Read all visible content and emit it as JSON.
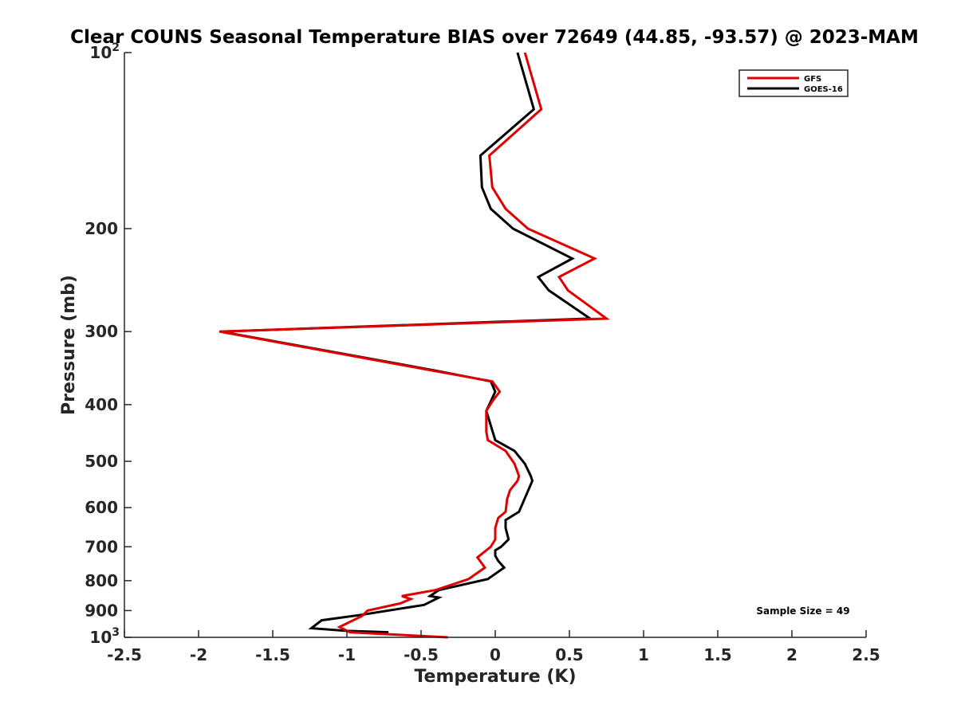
{
  "chart_data": {
    "type": "line",
    "title": "Clear COUNS Seasonal Temperature BIAS over 72649 (44.85, -93.57) @ 2023-MAM",
    "xlabel": "Temperature (K)",
    "ylabel": "Pressure (mb)",
    "xlim": [
      -2.5,
      2.5
    ],
    "ylim": [
      100,
      1000
    ],
    "yscale": "log",
    "x_ticks": [
      -2.5,
      -2,
      -1.5,
      -1,
      -0.5,
      0,
      0.5,
      1,
      1.5,
      2,
      2.5
    ],
    "x_tick_labels": [
      "-2.5",
      "-2",
      "-1.5",
      "-1",
      "-0.5",
      "0",
      "0.5",
      "1",
      "1.5",
      "2",
      "2.5"
    ],
    "y_ticks": [
      100,
      200,
      300,
      400,
      500,
      600,
      700,
      800,
      900,
      1000
    ],
    "y_tick_labels": [
      {
        "base": "10",
        "exp": "2"
      },
      {
        "text": "200"
      },
      {
        "text": "300"
      },
      {
        "text": "400"
      },
      {
        "text": "500"
      },
      {
        "text": "600"
      },
      {
        "text": "700"
      },
      {
        "text": "800"
      },
      {
        "text": "900"
      },
      {
        "base": "10",
        "exp": "3"
      }
    ],
    "legend_position": "top-right",
    "annotation": "Sample Size = 49",
    "series": [
      {
        "name": "GFS",
        "color": "#e00000",
        "points": [
          [
            0.2,
            100
          ],
          [
            0.31,
            125
          ],
          [
            -0.04,
            150
          ],
          [
            -0.02,
            170
          ],
          [
            0.07,
            185
          ],
          [
            0.22,
            200
          ],
          [
            0.67,
            225
          ],
          [
            0.43,
            242
          ],
          [
            0.49,
            255
          ],
          [
            0.75,
            285
          ],
          [
            -1.86,
            300
          ],
          [
            -0.42,
            350
          ],
          [
            -0.02,
            365
          ],
          [
            0.03,
            380
          ],
          [
            -0.02,
            395
          ],
          [
            -0.06,
            410
          ],
          [
            -0.06,
            445
          ],
          [
            -0.05,
            460
          ],
          [
            0.07,
            480
          ],
          [
            0.13,
            505
          ],
          [
            0.16,
            530
          ],
          [
            0.15,
            540
          ],
          [
            0.1,
            560
          ],
          [
            0.08,
            580
          ],
          [
            0.07,
            610
          ],
          [
            0.02,
            625
          ],
          [
            0.0,
            650
          ],
          [
            0.0,
            680
          ],
          [
            -0.03,
            700
          ],
          [
            -0.12,
            730
          ],
          [
            -0.07,
            760
          ],
          [
            -0.18,
            795
          ],
          [
            -0.4,
            830
          ],
          [
            -0.63,
            850
          ],
          [
            -0.57,
            860
          ],
          [
            -0.64,
            875
          ],
          [
            -0.86,
            900
          ],
          [
            -0.9,
            920
          ],
          [
            -1.05,
            960
          ],
          [
            -0.98,
            980
          ],
          [
            -0.32,
            1000
          ]
        ]
      },
      {
        "name": "GOES-16",
        "color": "#000000",
        "points": [
          [
            0.15,
            100
          ],
          [
            0.26,
            125
          ],
          [
            -0.1,
            150
          ],
          [
            -0.09,
            170
          ],
          [
            -0.03,
            185
          ],
          [
            0.12,
            200
          ],
          [
            0.52,
            225
          ],
          [
            0.29,
            242
          ],
          [
            0.36,
            255
          ],
          [
            0.64,
            285
          ],
          [
            -1.85,
            300
          ],
          [
            -0.4,
            350
          ],
          [
            -0.03,
            365
          ],
          [
            0.0,
            380
          ],
          [
            -0.03,
            395
          ],
          [
            -0.06,
            410
          ],
          [
            0.0,
            460
          ],
          [
            0.13,
            480
          ],
          [
            0.2,
            505
          ],
          [
            0.24,
            530
          ],
          [
            0.25,
            540
          ],
          [
            0.21,
            570
          ],
          [
            0.16,
            610
          ],
          [
            0.07,
            630
          ],
          [
            0.07,
            650
          ],
          [
            0.09,
            680
          ],
          [
            0.04,
            700
          ],
          [
            0.0,
            710
          ],
          [
            0.0,
            725
          ],
          [
            0.02,
            740
          ],
          [
            0.06,
            760
          ],
          [
            -0.05,
            795
          ],
          [
            -0.38,
            830
          ],
          [
            -0.44,
            850
          ],
          [
            -0.38,
            855
          ],
          [
            -0.48,
            880
          ],
          [
            -0.9,
            915
          ],
          [
            -1.17,
            935
          ],
          [
            -1.24,
            965
          ],
          [
            -1.0,
            975
          ],
          [
            -0.72,
            980
          ]
        ]
      }
    ]
  }
}
